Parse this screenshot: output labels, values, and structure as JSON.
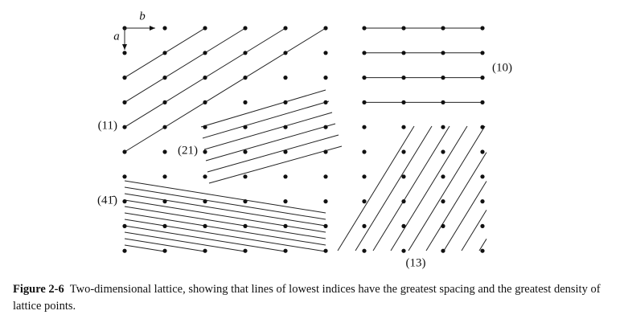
{
  "figure": {
    "vectors": {
      "a": "a",
      "b": "b"
    },
    "line_labels": {
      "l11": "(11)",
      "l21": "(21)",
      "l41": "(41̄)",
      "l10": "(10)",
      "l13": "(13)"
    },
    "caption": {
      "label": "Figure 2-6",
      "text": "Two-dimensional lattice, showing that lines of lowest indices have the greatest spacing and the greatest density of lattice points."
    }
  }
}
